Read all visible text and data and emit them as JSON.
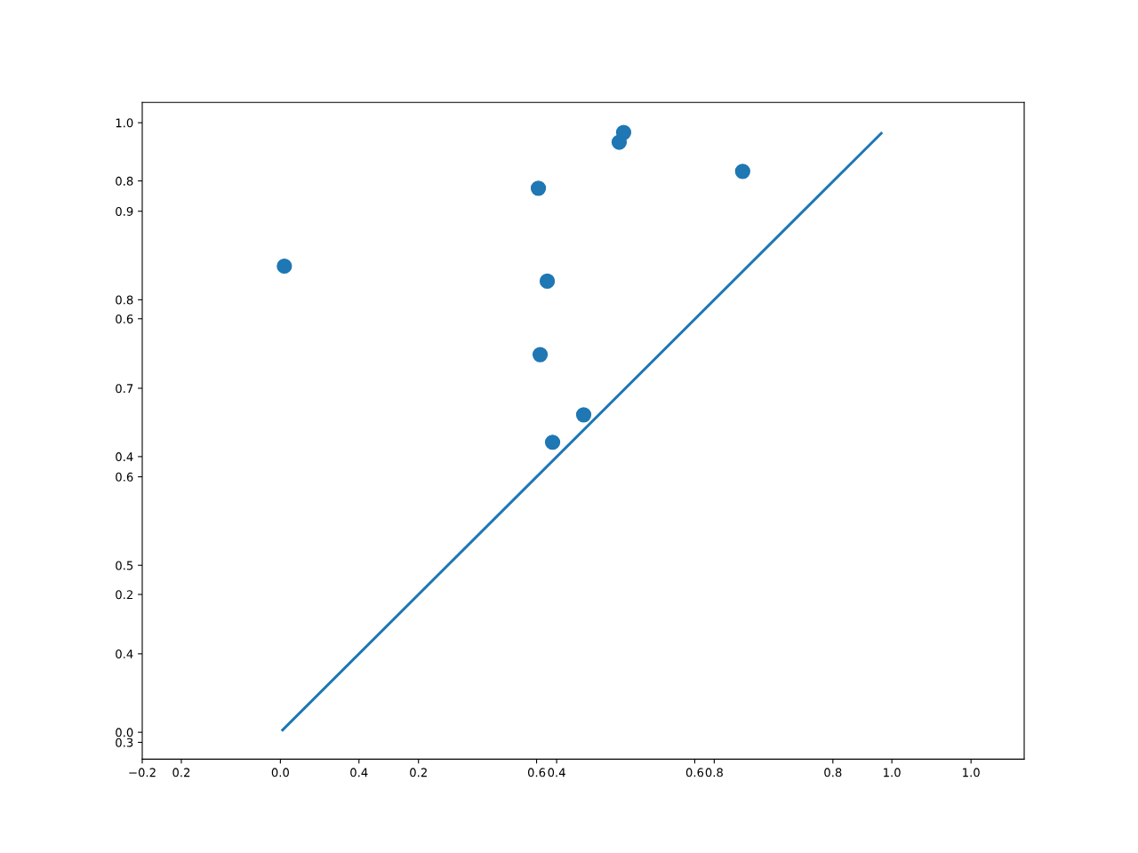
{
  "chart_data": {
    "type": "scatter",
    "xlim": [
      0.156,
      1.149
    ],
    "xticks": [
      0.2,
      0.4,
      0.6,
      0.8,
      {
        "value": 1.0,
        "label": "1.0"
      }
    ],
    "ylim": [
      0.281,
      1.023
    ],
    "yticks": [
      0.3,
      0.4,
      0.5,
      0.6,
      0.7,
      0.8,
      0.9,
      {
        "value": 1.0,
        "label": "1.0"
      }
    ],
    "x2lim": [
      -0.2,
      1.077
    ],
    "x2ticks": [
      {
        "value": -0.2,
        "label": "−0.2"
      },
      {
        "value": 0.0,
        "label": "0.0"
      },
      0.2,
      0.4,
      0.6,
      0.8,
      {
        "value": 1.0,
        "label": "1.0"
      }
    ],
    "y2lim": [
      -0.039,
      0.914
    ],
    "y2ticks": [
      {
        "value": 0.0,
        "label": "0.0"
      },
      0.2,
      0.4,
      0.6,
      0.8
    ],
    "grid": false,
    "legend": false,
    "series": [
      {
        "color": "#1f77b4",
        "marker": "circle",
        "x": [
          0.316,
          0.602,
          0.604,
          0.612,
          0.618,
          0.653,
          0.693,
          0.698,
          0.832
        ],
        "values": [
          0.838,
          0.926,
          0.738,
          0.821,
          0.639,
          0.67,
          0.978,
          0.989,
          0.945
        ]
      },
      {
        "type": "line",
        "color": "#1f77b4",
        "line_style": "solid",
        "x": [
          0.314,
          0.988
        ],
        "values": [
          0.314,
          0.988
        ]
      }
    ]
  }
}
